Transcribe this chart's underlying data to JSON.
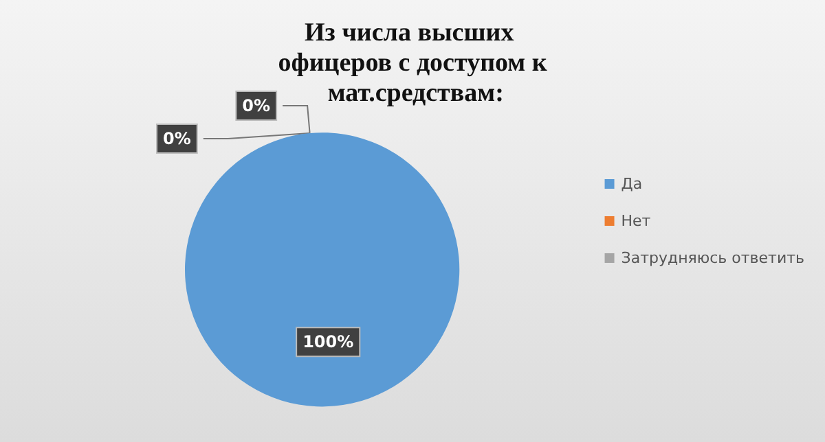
{
  "chart_data": {
    "type": "pie",
    "title": "Из числа высших офицеров с доступом к мат.средствам:",
    "categories": [
      "Да",
      "Нет",
      "Затрудняюсь ответить"
    ],
    "values": [
      100,
      0,
      0
    ],
    "colors": [
      "#5b9bd5",
      "#ed7d31",
      "#a5a5a5"
    ],
    "value_labels": [
      "100%",
      "0%",
      "0%"
    ],
    "legend": "right"
  }
}
